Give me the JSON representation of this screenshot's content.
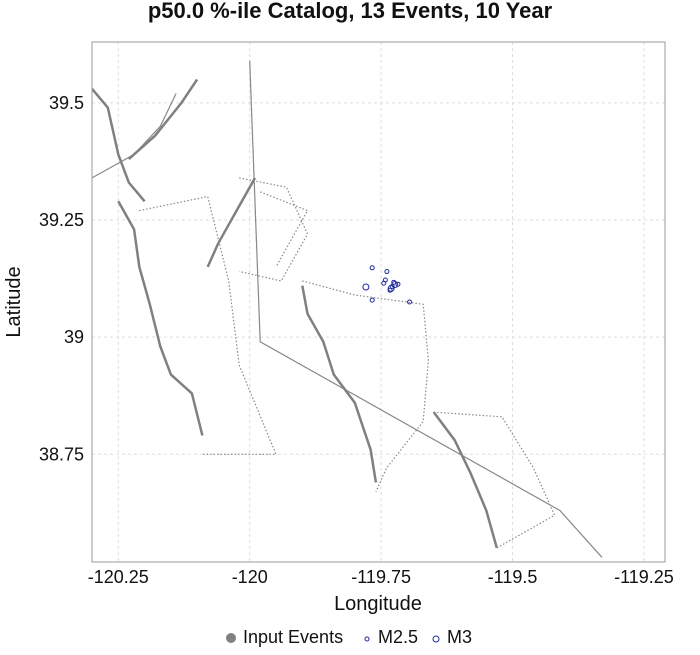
{
  "chart_data": {
    "type": "scatter",
    "title": "p50.0 %-ile Catalog, 13 Events, 10 Year",
    "xlabel": "Longitude",
    "ylabel": "Latitude",
    "xlim": [
      -120.3,
      -119.21
    ],
    "ylim": [
      38.52,
      39.63
    ],
    "x_ticks": [
      -120.25,
      -120,
      -119.75,
      -119.5,
      -119.25
    ],
    "x_tick_labels": [
      "-120.25",
      "-120",
      "-119.75",
      "-119.5",
      "-119.25"
    ],
    "y_ticks": [
      38.75,
      39,
      39.25,
      39.5
    ],
    "y_tick_labels": [
      "38.75",
      "39",
      "39.25",
      "39.5"
    ],
    "grid": true,
    "legend_position": "bottom",
    "legend": [
      {
        "label": "Input Events",
        "symbol": "filled-circle",
        "color": "#808080"
      },
      {
        "label": "M2.5",
        "symbol": "open-circle-small",
        "color": "#1f2a9e"
      },
      {
        "label": "M3",
        "symbol": "open-circle",
        "color": "#1f2a9e"
      }
    ],
    "series": [
      {
        "name": "M2.5",
        "color": "#1f2a9e",
        "points": [
          [
            -119.767,
            39.148
          ],
          [
            -119.739,
            39.14
          ],
          [
            -119.742,
            39.122
          ],
          [
            -119.745,
            39.115
          ],
          [
            -119.726,
            39.117
          ],
          [
            -119.718,
            39.113
          ],
          [
            -119.729,
            39.108
          ],
          [
            -119.733,
            39.1
          ],
          [
            -119.767,
            39.079
          ],
          [
            -119.696,
            39.075
          ]
        ]
      },
      {
        "name": "M3",
        "color": "#1f2a9e",
        "points": [
          [
            -119.779,
            39.107
          ],
          [
            -119.724,
            39.112
          ],
          [
            -119.731,
            39.104
          ]
        ]
      }
    ],
    "fault_traces": {
      "solid_dark": [
        [
          [
            -120.3,
            39.53
          ],
          [
            -120.27,
            39.49
          ],
          [
            -120.25,
            39.39
          ],
          [
            -120.23,
            39.33
          ],
          [
            -120.2,
            39.29
          ]
        ],
        [
          [
            -120.23,
            39.38
          ],
          [
            -120.18,
            39.43
          ],
          [
            -120.13,
            39.5
          ],
          [
            -120.1,
            39.55
          ]
        ],
        [
          [
            -120.25,
            39.29
          ],
          [
            -120.22,
            39.23
          ],
          [
            -120.21,
            39.15
          ],
          [
            -120.19,
            39.07
          ],
          [
            -120.17,
            38.98
          ],
          [
            -120.15,
            38.92
          ],
          [
            -120.11,
            38.88
          ],
          [
            -120.09,
            38.79
          ]
        ],
        [
          [
            -120.08,
            39.15
          ],
          [
            -120.06,
            39.2
          ],
          [
            -120.04,
            39.24
          ],
          [
            -120.02,
            39.28
          ],
          [
            -119.99,
            39.34
          ]
        ],
        [
          [
            -119.9,
            39.11
          ],
          [
            -119.89,
            39.05
          ],
          [
            -119.86,
            38.99
          ],
          [
            -119.84,
            38.92
          ],
          [
            -119.8,
            38.86
          ],
          [
            -119.77,
            38.76
          ],
          [
            -119.76,
            38.69
          ]
        ],
        [
          [
            -119.65,
            38.84
          ],
          [
            -119.61,
            38.78
          ],
          [
            -119.58,
            38.71
          ],
          [
            -119.55,
            38.63
          ],
          [
            -119.53,
            38.55
          ]
        ]
      ],
      "solid_light": [
        [
          [
            -120.0,
            39.59
          ],
          [
            -119.98,
            38.99
          ],
          [
            -119.41,
            38.63
          ],
          [
            -119.33,
            38.53
          ]
        ],
        [
          [
            -120.3,
            39.34
          ],
          [
            -120.22,
            39.39
          ],
          [
            -120.17,
            39.45
          ],
          [
            -120.14,
            39.52
          ]
        ]
      ],
      "dotted": [
        [
          [
            -120.21,
            39.27
          ],
          [
            -120.08,
            39.3
          ],
          [
            -120.04,
            39.12
          ],
          [
            -120.02,
            38.94
          ],
          [
            -119.95,
            38.75
          ],
          [
            -120.09,
            38.75
          ]
        ],
        [
          [
            -120.02,
            39.34
          ],
          [
            -119.93,
            39.32
          ],
          [
            -119.89,
            39.22
          ],
          [
            -119.94,
            39.12
          ],
          [
            -120.02,
            39.14
          ]
        ],
        [
          [
            -119.98,
            39.31
          ],
          [
            -119.89,
            39.27
          ],
          [
            -119.95,
            39.15
          ]
        ],
        [
          [
            -119.9,
            39.12
          ],
          [
            -119.8,
            39.09
          ],
          [
            -119.67,
            39.07
          ],
          [
            -119.66,
            38.95
          ],
          [
            -119.67,
            38.82
          ],
          [
            -119.74,
            38.72
          ],
          [
            -119.76,
            38.67
          ]
        ],
        [
          [
            -119.65,
            38.84
          ],
          [
            -119.52,
            38.83
          ],
          [
            -119.46,
            38.72
          ],
          [
            -119.42,
            38.62
          ],
          [
            -119.53,
            38.55
          ]
        ]
      ]
    }
  }
}
